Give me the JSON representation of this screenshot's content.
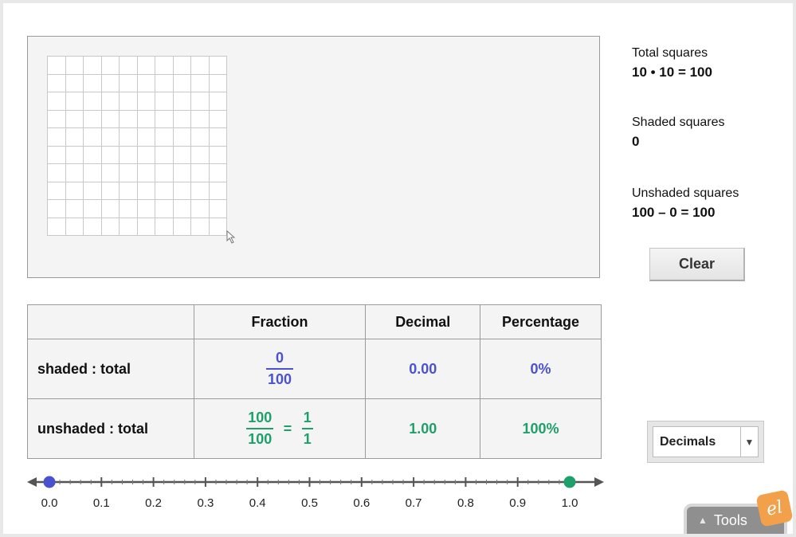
{
  "info": {
    "total_label": "Total squares",
    "total_value": "10 • 10 = 100",
    "shaded_label": "Shaded squares",
    "shaded_value": "0",
    "unshaded_label": "Unshaded squares",
    "unshaded_value": "100 – 0 = 100"
  },
  "clear_label": "Clear",
  "grid": {
    "rows": 10,
    "cols": 10,
    "shaded": 0
  },
  "table": {
    "headers": [
      "",
      "Fraction",
      "Decimal",
      "Percentage"
    ],
    "shaded": {
      "label": "shaded : total",
      "num": "0",
      "den": "100",
      "decimal": "0.00",
      "percent": "0%"
    },
    "unshaded": {
      "label": "unshaded : total",
      "num": "100",
      "den": "100",
      "eq": "=",
      "simp_num": "1",
      "simp_den": "1",
      "decimal": "1.00",
      "percent": "100%"
    }
  },
  "number_line": {
    "ticks": [
      "0.0",
      "0.1",
      "0.2",
      "0.3",
      "0.4",
      "0.5",
      "0.6",
      "0.7",
      "0.8",
      "0.9",
      "1.0"
    ],
    "shaded_marker": 0.0,
    "unshaded_marker": 1.0,
    "shaded_color": "#4a52d0",
    "unshaded_color": "#1ea06a"
  },
  "dropdown": {
    "selected": "Decimals"
  },
  "tools_label": "Tools",
  "logo_text": "el",
  "icons": {
    "resize": "resize-cursor-icon",
    "dropdown": "chevron-down-icon",
    "tools": "triangle-up-icon"
  }
}
